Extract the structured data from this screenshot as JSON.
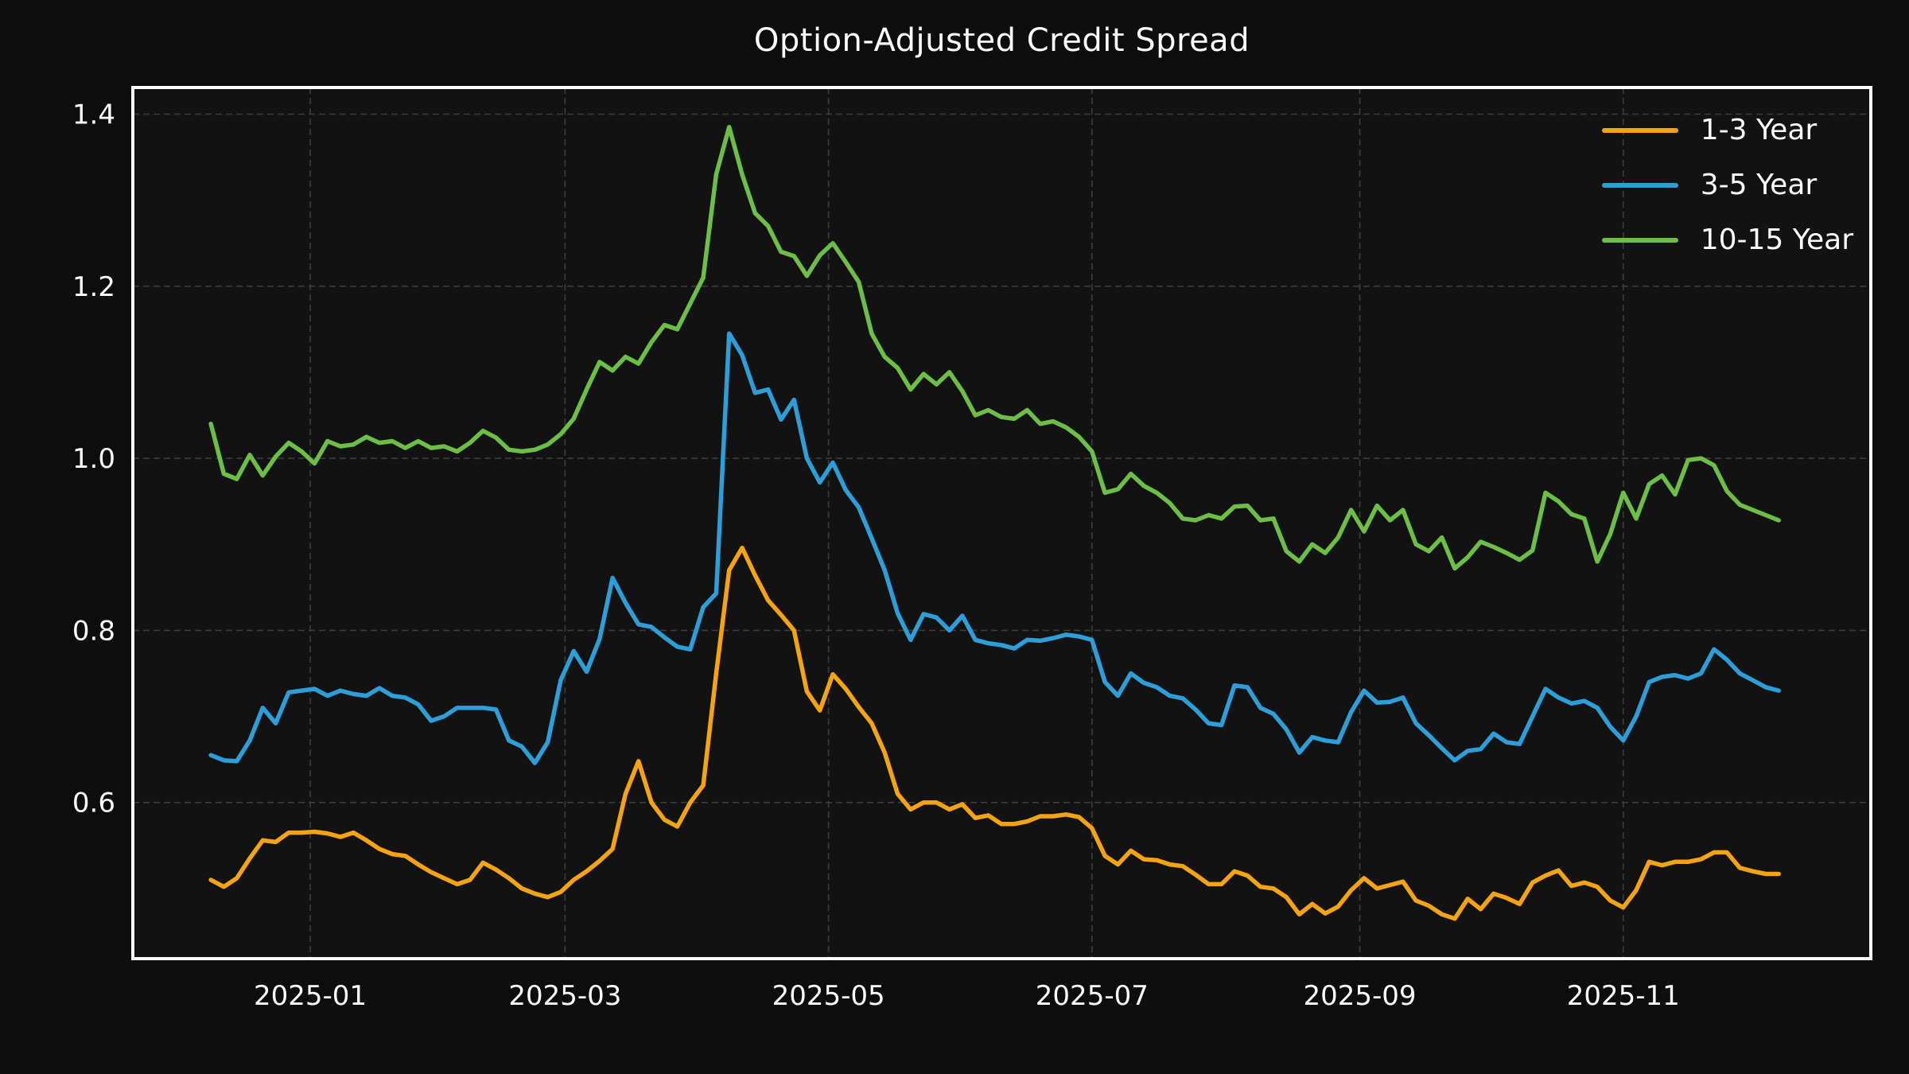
{
  "title": "Option-Adjusted Credit Spread",
  "chart_data": {
    "type": "line",
    "title": "Option-Adjusted Credit Spread",
    "xlabel": "",
    "ylabel": "",
    "grid": true,
    "grid_style": "dashed",
    "legend_position": "upper-right",
    "background_color": "#0d0d0e",
    "axes_background_color": "#121213",
    "spine_color": "#ffffff",
    "gridline_color": "#3d3d3d",
    "text_color": "#ffffff",
    "ylim": [
      0.4185,
      1.431
    ],
    "yticks": [
      0.6,
      0.8,
      1.0,
      1.2,
      1.4
    ],
    "xtick_dates": [
      "2025-01-01",
      "2025-03-01",
      "2025-05-01",
      "2025-07-01",
      "2025-09-01",
      "2025-11-01"
    ],
    "xtick_labels": [
      "2025-01",
      "2025-03",
      "2025-05",
      "2025-07",
      "2025-09",
      "2025-11"
    ],
    "x": [
      "2024-12-09",
      "2024-12-12",
      "2024-12-15",
      "2024-12-18",
      "2024-12-21",
      "2024-12-24",
      "2024-12-27",
      "2024-12-30",
      "2025-01-02",
      "2025-01-05",
      "2025-01-08",
      "2025-01-11",
      "2025-01-14",
      "2025-01-17",
      "2025-01-20",
      "2025-01-23",
      "2025-01-26",
      "2025-01-29",
      "2025-02-01",
      "2025-02-04",
      "2025-02-07",
      "2025-02-10",
      "2025-02-13",
      "2025-02-16",
      "2025-02-19",
      "2025-02-22",
      "2025-02-25",
      "2025-02-28",
      "2025-03-03",
      "2025-03-06",
      "2025-03-09",
      "2025-03-12",
      "2025-03-15",
      "2025-03-18",
      "2025-03-21",
      "2025-03-24",
      "2025-03-27",
      "2025-03-30",
      "2025-04-02",
      "2025-04-05",
      "2025-04-08",
      "2025-04-11",
      "2025-04-14",
      "2025-04-17",
      "2025-04-20",
      "2025-04-23",
      "2025-04-26",
      "2025-04-29",
      "2025-05-02",
      "2025-05-05",
      "2025-05-08",
      "2025-05-11",
      "2025-05-14",
      "2025-05-17",
      "2025-05-20",
      "2025-05-23",
      "2025-05-26",
      "2025-05-29",
      "2025-06-01",
      "2025-06-04",
      "2025-06-07",
      "2025-06-10",
      "2025-06-13",
      "2025-06-16",
      "2025-06-19",
      "2025-06-22",
      "2025-06-25",
      "2025-06-28",
      "2025-07-01",
      "2025-07-04",
      "2025-07-07",
      "2025-07-10",
      "2025-07-13",
      "2025-07-16",
      "2025-07-19",
      "2025-07-22",
      "2025-07-25",
      "2025-07-28",
      "2025-07-31",
      "2025-08-03",
      "2025-08-06",
      "2025-08-09",
      "2025-08-12",
      "2025-08-15",
      "2025-08-18",
      "2025-08-21",
      "2025-08-24",
      "2025-08-27",
      "2025-08-30",
      "2025-09-02",
      "2025-09-05",
      "2025-09-08",
      "2025-09-11",
      "2025-09-14",
      "2025-09-17",
      "2025-09-20",
      "2025-09-23",
      "2025-09-26",
      "2025-09-29",
      "2025-10-02",
      "2025-10-05",
      "2025-10-08",
      "2025-10-11",
      "2025-10-14",
      "2025-10-17",
      "2025-10-20",
      "2025-10-23",
      "2025-10-26",
      "2025-10-29",
      "2025-11-01",
      "2025-11-04",
      "2025-11-07",
      "2025-11-10",
      "2025-11-13",
      "2025-11-16",
      "2025-11-19",
      "2025-11-22",
      "2025-11-25",
      "2025-11-28",
      "2025-12-01",
      "2025-12-04",
      "2025-12-07"
    ],
    "series": [
      {
        "name": "1-3 Year",
        "color": "#f5a40e",
        "values": [
          0.51,
          0.502,
          0.512,
          0.535,
          0.556,
          0.554,
          0.565,
          0.565,
          0.566,
          0.564,
          0.56,
          0.565,
          0.556,
          0.546,
          0.54,
          0.538,
          0.528,
          0.519,
          0.512,
          0.505,
          0.51,
          0.53,
          0.522,
          0.512,
          0.5,
          0.494,
          0.49,
          0.496,
          0.51,
          0.52,
          0.532,
          0.546,
          0.61,
          0.648,
          0.6,
          0.58,
          0.572,
          0.6,
          0.62,
          0.75,
          0.87,
          0.896,
          0.864,
          0.835,
          0.818,
          0.8,
          0.729,
          0.707,
          0.749,
          0.732,
          0.711,
          0.692,
          0.658,
          0.61,
          0.592,
          0.6,
          0.6,
          0.592,
          0.598,
          0.582,
          0.585,
          0.575,
          0.575,
          0.578,
          0.584,
          0.584,
          0.586,
          0.583,
          0.57,
          0.538,
          0.528,
          0.544,
          0.534,
          0.533,
          0.528,
          0.526,
          0.516,
          0.505,
          0.505,
          0.52,
          0.515,
          0.502,
          0.5,
          0.49,
          0.47,
          0.482,
          0.471,
          0.479,
          0.498,
          0.512,
          0.5,
          0.504,
          0.508,
          0.486,
          0.48,
          0.47,
          0.465,
          0.488,
          0.476,
          0.494,
          0.489,
          0.482,
          0.507,
          0.515,
          0.521,
          0.503,
          0.507,
          0.502,
          0.486,
          0.478,
          0.498,
          0.531,
          0.527,
          0.531,
          0.531,
          0.534,
          0.542,
          0.542,
          0.524,
          0.52,
          0.517,
          0.517
        ]
      },
      {
        "name": "3-5 Year",
        "color": "#2d9fd8",
        "values": [
          0.655,
          0.649,
          0.648,
          0.672,
          0.71,
          0.692,
          0.728,
          0.73,
          0.732,
          0.724,
          0.73,
          0.726,
          0.724,
          0.733,
          0.724,
          0.722,
          0.714,
          0.695,
          0.7,
          0.71,
          0.71,
          0.71,
          0.708,
          0.672,
          0.665,
          0.646,
          0.67,
          0.742,
          0.776,
          0.752,
          0.79,
          0.861,
          0.832,
          0.807,
          0.804,
          0.792,
          0.781,
          0.778,
          0.827,
          0.843,
          1.145,
          1.12,
          1.076,
          1.08,
          1.045,
          1.068,
          1.0,
          0.972,
          0.995,
          0.963,
          0.943,
          0.907,
          0.87,
          0.82,
          0.789,
          0.819,
          0.815,
          0.8,
          0.817,
          0.789,
          0.785,
          0.783,
          0.779,
          0.789,
          0.788,
          0.791,
          0.795,
          0.793,
          0.789,
          0.74,
          0.724,
          0.75,
          0.739,
          0.734,
          0.724,
          0.721,
          0.708,
          0.692,
          0.69,
          0.736,
          0.734,
          0.71,
          0.703,
          0.685,
          0.658,
          0.676,
          0.672,
          0.67,
          0.705,
          0.73,
          0.716,
          0.717,
          0.722,
          0.692,
          0.678,
          0.663,
          0.649,
          0.66,
          0.662,
          0.68,
          0.67,
          0.668,
          0.7,
          0.732,
          0.722,
          0.715,
          0.718,
          0.71,
          0.688,
          0.672,
          0.7,
          0.74,
          0.746,
          0.748,
          0.744,
          0.75,
          0.778,
          0.766,
          0.75,
          0.742,
          0.734,
          0.73
        ]
      },
      {
        "name": "10-15 Year",
        "color": "#6cbe45",
        "values": [
          1.04,
          0.982,
          0.976,
          1.004,
          0.98,
          1.002,
          1.018,
          1.008,
          0.994,
          1.02,
          1.014,
          1.016,
          1.025,
          1.018,
          1.02,
          1.012,
          1.02,
          1.012,
          1.014,
          1.008,
          1.018,
          1.032,
          1.024,
          1.01,
          1.008,
          1.01,
          1.016,
          1.028,
          1.046,
          1.08,
          1.112,
          1.102,
          1.118,
          1.11,
          1.135,
          1.155,
          1.15,
          1.18,
          1.21,
          1.33,
          1.385,
          1.33,
          1.285,
          1.27,
          1.24,
          1.235,
          1.212,
          1.236,
          1.25,
          1.228,
          1.205,
          1.145,
          1.118,
          1.105,
          1.08,
          1.098,
          1.086,
          1.1,
          1.078,
          1.05,
          1.056,
          1.048,
          1.046,
          1.056,
          1.04,
          1.043,
          1.036,
          1.025,
          1.008,
          0.96,
          0.964,
          0.982,
          0.968,
          0.96,
          0.948,
          0.93,
          0.928,
          0.934,
          0.93,
          0.944,
          0.945,
          0.928,
          0.93,
          0.892,
          0.88,
          0.9,
          0.89,
          0.908,
          0.94,
          0.915,
          0.945,
          0.928,
          0.94,
          0.9,
          0.892,
          0.908,
          0.872,
          0.885,
          0.903,
          0.897,
          0.89,
          0.882,
          0.893,
          0.96,
          0.95,
          0.935,
          0.93,
          0.88,
          0.912,
          0.96,
          0.93,
          0.97,
          0.98,
          0.958,
          0.998,
          1.0,
          0.992,
          0.962,
          0.946,
          0.94,
          0.934,
          0.928
        ]
      }
    ]
  },
  "legend": {
    "items": [
      {
        "label": "1-3 Year"
      },
      {
        "label": "3-5 Year"
      },
      {
        "label": "10-15 Year"
      }
    ]
  }
}
